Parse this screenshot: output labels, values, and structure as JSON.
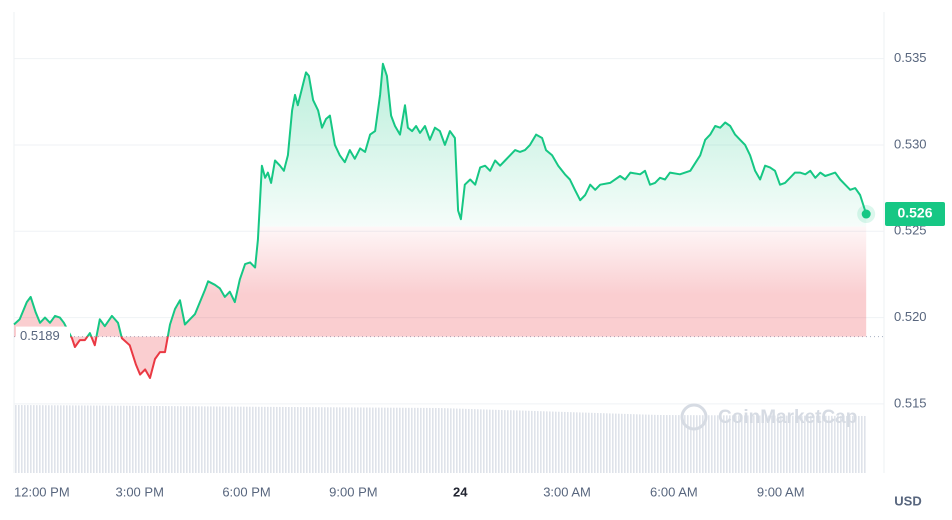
{
  "chart_data": {
    "type": "line",
    "x": [
      -0.53,
      -0.37,
      -0.17,
      -0.06,
      0.08,
      0.2,
      0.34,
      0.48,
      0.62,
      0.76,
      0.87,
      1.1,
      1.18,
      1.32,
      1.46,
      1.6,
      1.74,
      1.88,
      2.02,
      2.22,
      2.39,
      2.5,
      2.72,
      2.89,
      3.01,
      3.15,
      3.29,
      3.43,
      3.57,
      3.71,
      3.85,
      3.99,
      4.13,
      4.27,
      4.41,
      4.55,
      4.69,
      4.83,
      4.92,
      5.11,
      5.25,
      5.39,
      5.53,
      5.67,
      5.81,
      5.96,
      6.1,
      6.24,
      6.32,
      6.43,
      6.52,
      6.6,
      6.69,
      6.8,
      6.94,
      7.05,
      7.16,
      7.28,
      7.36,
      7.44,
      7.56,
      7.67,
      7.75,
      7.87,
      8.01,
      8.12,
      8.23,
      8.34,
      8.48,
      8.62,
      8.76,
      8.9,
      9.04,
      9.19,
      9.33,
      9.47,
      9.61,
      9.75,
      9.83,
      9.94,
      10.06,
      10.17,
      10.31,
      10.45,
      10.53,
      10.65,
      10.76,
      10.87,
      11.01,
      11.15,
      11.29,
      11.43,
      11.57,
      11.71,
      11.85,
      11.94,
      12.02,
      12.13,
      12.28,
      12.42,
      12.56,
      12.7,
      12.84,
      12.98,
      13.12,
      13.26,
      13.4,
      13.54,
      13.68,
      13.82,
      13.96,
      14.13,
      14.3,
      14.41,
      14.58,
      14.75,
      14.94,
      15.08,
      15.22,
      15.37,
      15.51,
      15.65,
      15.79,
      15.93,
      16.21,
      16.49,
      16.63,
      16.78,
      17.05,
      17.19,
      17.33,
      17.47,
      17.61,
      17.75,
      17.89,
      18.17,
      18.46,
      18.74,
      18.88,
      19.02,
      19.16,
      19.3,
      19.44,
      19.58,
      19.72,
      19.86,
      20.0,
      20.14,
      20.28,
      20.42,
      20.56,
      20.7,
      20.84,
      20.98,
      21.12,
      21.26,
      21.4,
      21.54,
      21.69,
      21.83,
      21.97,
      22.11,
      22.25,
      22.39,
      22.53,
      22.67,
      22.81,
      22.95,
      23.09,
      23.23,
      23.4
    ],
    "series": [
      {
        "color": "#16c784",
        "values": [
          0.5196,
          0.5199,
          0.5209,
          0.5212,
          0.5203,
          0.5197,
          0.52,
          0.5197,
          0.5201,
          0.52,
          0.5197,
          0.5188,
          0.5183,
          0.5187,
          0.5187,
          0.5191,
          0.5184,
          0.5199,
          0.5195,
          0.5201,
          0.5197,
          0.5188,
          0.5184,
          0.5173,
          0.5167,
          0.517,
          0.5165,
          0.5176,
          0.518,
          0.518,
          0.5196,
          0.5205,
          0.521,
          0.5196,
          0.5199,
          0.5202,
          0.5209,
          0.5216,
          0.5221,
          0.5219,
          0.5217,
          0.5212,
          0.5215,
          0.5209,
          0.5222,
          0.5231,
          0.5232,
          0.5229,
          0.5245,
          0.5288,
          0.5281,
          0.5284,
          0.5278,
          0.5291,
          0.5288,
          0.5285,
          0.5294,
          0.532,
          0.5329,
          0.5323,
          0.5333,
          0.5342,
          0.534,
          0.5326,
          0.532,
          0.531,
          0.5315,
          0.5317,
          0.53,
          0.5294,
          0.529,
          0.5297,
          0.5292,
          0.5298,
          0.5296,
          0.5306,
          0.5308,
          0.5329,
          0.5347,
          0.534,
          0.5317,
          0.5311,
          0.5306,
          0.5323,
          0.531,
          0.5308,
          0.5311,
          0.5307,
          0.5311,
          0.5303,
          0.531,
          0.5308,
          0.53,
          0.5308,
          0.5304,
          0.5262,
          0.5257,
          0.5277,
          0.528,
          0.5277,
          0.5287,
          0.5288,
          0.5285,
          0.5291,
          0.5288,
          0.5291,
          0.5294,
          0.5297,
          0.5296,
          0.5297,
          0.53,
          0.5306,
          0.5304,
          0.5297,
          0.5294,
          0.5288,
          0.5283,
          0.528,
          0.5274,
          0.5268,
          0.5271,
          0.5277,
          0.5274,
          0.5277,
          0.5278,
          0.5282,
          0.528,
          0.5284,
          0.5283,
          0.5285,
          0.5277,
          0.5278,
          0.5281,
          0.528,
          0.5284,
          0.5283,
          0.5285,
          0.5294,
          0.5303,
          0.5306,
          0.5311,
          0.531,
          0.5313,
          0.5311,
          0.5306,
          0.5303,
          0.53,
          0.5294,
          0.5285,
          0.528,
          0.5288,
          0.5287,
          0.5285,
          0.5277,
          0.5278,
          0.5281,
          0.5284,
          0.5284,
          0.5283,
          0.5285,
          0.5281,
          0.5284,
          0.5282,
          0.5283,
          0.5284,
          0.528,
          0.5277,
          0.5274,
          0.5275,
          0.5271,
          0.526
        ]
      }
    ],
    "below_color": "#ea3943",
    "baseline": 0.5189,
    "xlim": [
      -0.53,
      23.9
    ],
    "xticks": [
      {
        "value": 0,
        "label": "12:00 PM"
      },
      {
        "value": 3,
        "label": "3:00 PM"
      },
      {
        "value": 6,
        "label": "6:00 PM"
      },
      {
        "value": 9,
        "label": "9:00 PM"
      },
      {
        "value": 12,
        "label": "24"
      },
      {
        "value": 15,
        "label": "3:00 AM"
      },
      {
        "value": 18,
        "label": "6:00 AM"
      },
      {
        "value": 21,
        "label": "9:00 AM"
      }
    ],
    "ylim": [
      0.511,
      0.5377
    ],
    "yticks": [
      0.515,
      {
        "value": 0.52,
        "label": "0.520"
      },
      0.525,
      {
        "value": 0.53,
        "label": "0.530"
      },
      0.535
    ],
    "y_label": "USD",
    "watermark": "CoinMarketCap",
    "grid": true
  }
}
